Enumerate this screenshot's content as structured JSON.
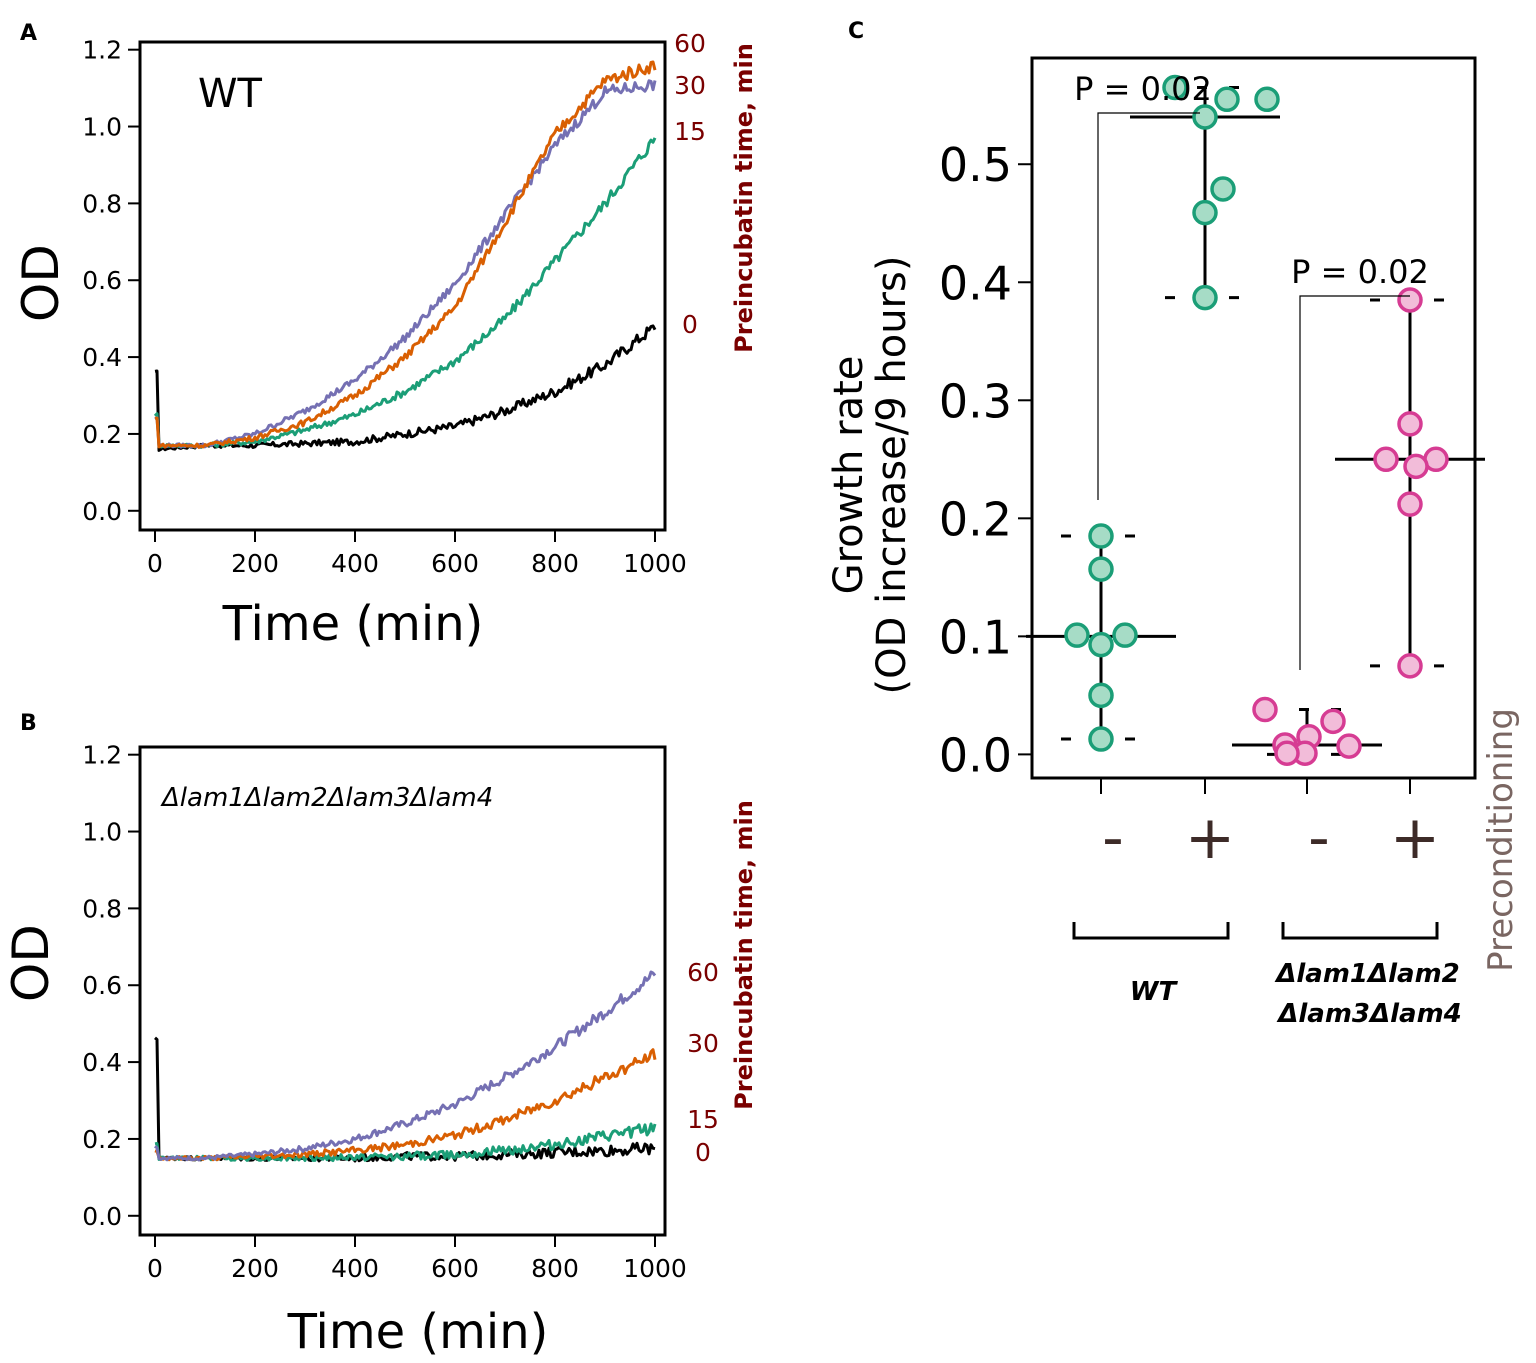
{
  "chart_data": [
    {
      "panel": "A",
      "type": "line",
      "annotation": "WT",
      "xlabel": "Time (min)",
      "ylabel": "OD",
      "secondary_ylabel": "Preincubatin time, min",
      "xlim": [
        -30,
        1020
      ],
      "ylim": [
        -0.05,
        1.22
      ],
      "xticks": [
        "0",
        "200",
        "400",
        "600",
        "800",
        "1000"
      ],
      "yticks": [
        "0.0",
        "0.2",
        "0.4",
        "0.6",
        "0.8",
        "1.0",
        "1.2"
      ],
      "x": [
        0,
        100,
        200,
        300,
        400,
        500,
        600,
        700,
        800,
        900,
        1000
      ],
      "series": [
        {
          "name": "0",
          "color": "#000000",
          "values": [
            0.16,
            0.17,
            0.17,
            0.175,
            0.18,
            0.2,
            0.22,
            0.26,
            0.31,
            0.38,
            0.48
          ]
        },
        {
          "name": "15",
          "color": "#1b9e77",
          "values": [
            0.17,
            0.17,
            0.18,
            0.21,
            0.25,
            0.31,
            0.39,
            0.5,
            0.65,
            0.8,
            0.97
          ]
        },
        {
          "name": "30",
          "color": "#7570b3",
          "values": [
            0.17,
            0.17,
            0.2,
            0.26,
            0.34,
            0.45,
            0.59,
            0.77,
            0.95,
            1.09,
            1.11
          ]
        },
        {
          "name": "60",
          "color": "#d95f02",
          "values": [
            0.17,
            0.17,
            0.19,
            0.23,
            0.3,
            0.4,
            0.53,
            0.75,
            0.98,
            1.12,
            1.16
          ]
        }
      ]
    },
    {
      "panel": "B",
      "type": "line",
      "annotation": "Δlam1Δlam2Δlam3Δlam4",
      "xlabel": "Time (min)",
      "ylabel": "OD",
      "secondary_ylabel": "Preincubatin time, min",
      "xlim": [
        -30,
        1020
      ],
      "ylim": [
        -0.05,
        1.22
      ],
      "xticks": [
        "0",
        "200",
        "400",
        "600",
        "800",
        "1000"
      ],
      "yticks": [
        "0.0",
        "0.2",
        "0.4",
        "0.6",
        "0.8",
        "1.0",
        "1.2"
      ],
      "x": [
        0,
        100,
        200,
        300,
        400,
        500,
        600,
        700,
        800,
        900,
        1000
      ],
      "series": [
        {
          "name": "0",
          "color": "#000000",
          "values": [
            0.15,
            0.15,
            0.15,
            0.15,
            0.15,
            0.155,
            0.155,
            0.16,
            0.165,
            0.17,
            0.175
          ]
        },
        {
          "name": "15",
          "color": "#1b9e77",
          "values": [
            0.15,
            0.15,
            0.15,
            0.15,
            0.152,
            0.155,
            0.16,
            0.17,
            0.185,
            0.205,
            0.23
          ]
        },
        {
          "name": "30",
          "color": "#d95f02",
          "values": [
            0.15,
            0.15,
            0.155,
            0.16,
            0.17,
            0.185,
            0.21,
            0.25,
            0.3,
            0.36,
            0.42
          ]
        },
        {
          "name": "60",
          "color": "#7570b3",
          "values": [
            0.15,
            0.15,
            0.16,
            0.175,
            0.2,
            0.24,
            0.29,
            0.36,
            0.44,
            0.53,
            0.63
          ]
        }
      ]
    },
    {
      "panel": "C",
      "type": "scatter",
      "ylabel_line1": "Growth rate",
      "ylabel_line2": "(OD increase/9 hours)",
      "ylim": [
        -0.02,
        0.59
      ],
      "yticks": [
        "0.0",
        "0.1",
        "0.2",
        "0.3",
        "0.4",
        "0.5"
      ],
      "xlabel_right": "Preconditioning",
      "groups": [
        {
          "label": "-",
          "strain": "WT",
          "color": "#1b9e77",
          "fill": "#a6dcc6",
          "median": 0.1,
          "min": 0.013,
          "max": 0.185,
          "points": [
            0.185,
            0.157,
            0.101,
            0.101,
            0.093,
            0.05,
            0.013
          ]
        },
        {
          "label": "+",
          "strain": "WT",
          "color": "#1b9e77",
          "fill": "#a6dcc6",
          "median": 0.54,
          "min": 0.387,
          "max": 0.565,
          "points": [
            0.565,
            0.555,
            0.555,
            0.54,
            0.479,
            0.459,
            0.387
          ]
        },
        {
          "label": "-",
          "strain": "Δlam1Δlam2Δlam3Δlam4",
          "color": "#d63c93",
          "fill": "#f2bcd9",
          "median": 0.008,
          "min": 0.0,
          "max": 0.038,
          "points": [
            0.038,
            0.028,
            0.015,
            0.008,
            0.007,
            0.001,
            0.001
          ]
        },
        {
          "label": "+",
          "strain": "Δlam1Δlam2Δlam3Δlam4",
          "color": "#d63c93",
          "fill": "#f2bcd9",
          "median": 0.25,
          "min": 0.075,
          "max": 0.385,
          "points": [
            0.385,
            0.28,
            0.25,
            0.25,
            0.244,
            0.212,
            0.075
          ]
        }
      ],
      "comparisons": [
        {
          "label": "P = 0.02",
          "from": 0,
          "to": 1
        },
        {
          "label": "P = 0.02",
          "from": 2,
          "to": 3
        }
      ],
      "strain_labels": [
        "WT",
        "Δlam1Δlam2",
        "Δlam3Δlam4"
      ]
    }
  ],
  "panel_labels": [
    "A",
    "B",
    "C"
  ]
}
